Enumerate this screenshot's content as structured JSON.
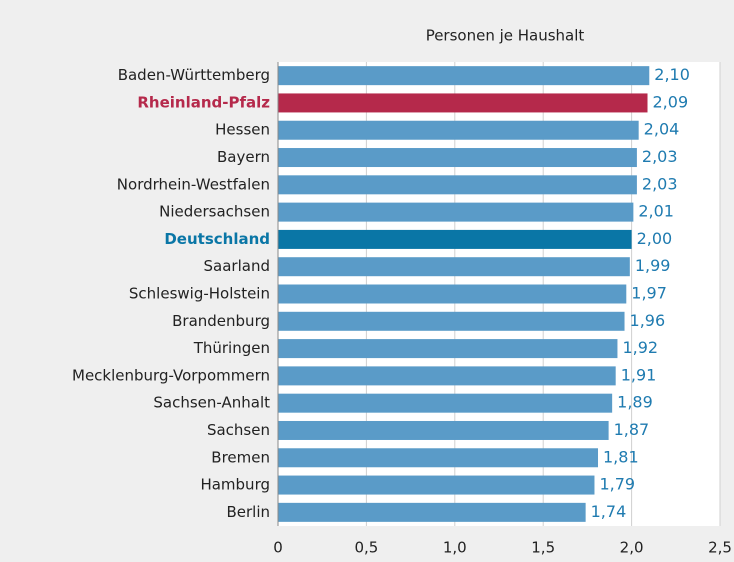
{
  "chart_data": {
    "type": "bar",
    "orientation": "horizontal",
    "axis_label": "Personen je Haushalt",
    "categories": [
      "Baden-Württemberg",
      "Rheinland-Pfalz",
      "Hessen",
      "Bayern",
      "Nordrhein-Westfalen",
      "Niedersachsen",
      "Deutschland",
      "Saarland",
      "Schleswig-Holstein",
      "Brandenburg",
      "Thüringen",
      "Mecklenburg-Vorpommern",
      "Sachsen-Anhalt",
      "Sachsen",
      "Bremen",
      "Hamburg",
      "Berlin"
    ],
    "values": [
      2.1,
      2.09,
      2.04,
      2.03,
      2.03,
      2.01,
      2.0,
      1.99,
      1.97,
      1.96,
      1.92,
      1.91,
      1.89,
      1.87,
      1.81,
      1.79,
      1.74
    ],
    "value_labels": [
      "2,10",
      "2,09",
      "2,04",
      "2,03",
      "2,03",
      "2,01",
      "2,00",
      "1,99",
      "1,97",
      "1,96",
      "1,92",
      "1,91",
      "1,89",
      "1,87",
      "1,81",
      "1,79",
      "1,74"
    ],
    "color": "#5a9bc8",
    "colors": [
      "#5a9bc8",
      "#b5294b",
      "#5a9bc8",
      "#5a9bc8",
      "#5a9bc8",
      "#5a9bc8",
      "#0a76a6",
      "#5a9bc8",
      "#5a9bc8",
      "#5a9bc8",
      "#5a9bc8",
      "#5a9bc8",
      "#5a9bc8",
      "#5a9bc8",
      "#5a9bc8",
      "#5a9bc8",
      "#5a9bc8"
    ],
    "xlim": [
      0,
      2.5
    ],
    "xticks": [
      0,
      {
        "value": 0.5,
        "label": "0,5"
      },
      {
        "value": 1.0,
        "label": "1,0"
      },
      {
        "value": 1.5,
        "label": "1,5"
      },
      {
        "value": 2.0,
        "label": "2,0"
      },
      {
        "value": 2.5,
        "label": "2,5"
      }
    ],
    "grid": true
  }
}
